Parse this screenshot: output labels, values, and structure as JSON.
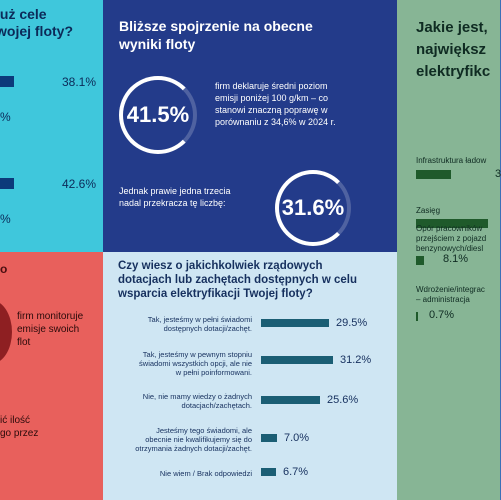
{
  "fleet_goals": {
    "question": "już cele\nwojej floty?",
    "items": [
      {
        "value": "38.1%"
      },
      {
        "value": "%"
      },
      {
        "value": "42.6%"
      },
      {
        "value": "%"
      }
    ]
  },
  "results": {
    "title": "Bliższe spojrzenie na obecne\nwyniki floty",
    "stat1": {
      "value": "41.5%",
      "text": "firm deklaruje średni poziom\nemisji poniżej 100 g/km – co\nstanowi znaczną poprawę w\nporównaniu z 34,6% w 2024 r."
    },
    "stat2": {
      "value": "31.6%",
      "text": "Jednak prawie jedna trzecia\nnadal przekracza tę liczbę:"
    }
  },
  "challenges": {
    "title": "Jakie jest,\nnajwiększ\nelektryfikc",
    "items": [
      {
        "label": "Infrastruktura ładow",
        "value": "3",
        "fraction": 0.42
      },
      {
        "label": "Zasięg",
        "value": "",
        "fraction": 0.86
      },
      {
        "label": "Opór pracowników\nprzejściem z pojazd\nbenzynowych/diesl",
        "value": "8.1%",
        "fraction": 0.1
      },
      {
        "label": "Wdrożenie/integrac\n– administracja",
        "value": "0.7%",
        "fraction": 0.01
      }
    ]
  },
  "monitoring": {
    "number": "o",
    "text": "firm monitoruje\nemisje swoich\nflot",
    "text2": "ić ilość\ngo przez"
  },
  "subsidies": {
    "title": "Czy wiesz o jakichkolwiek rządowych\ndotacjach lub zachętach dostępnych w celu\nwsparcia elektryfikacji Twojej floty?",
    "rows": [
      {
        "label": "Tak, jesteśmy w pełni świadomi\ndostępnych dotacji/zachęt.",
        "value": "29.5%",
        "pct": 29.5
      },
      {
        "label": "Tak, jesteśmy w pewnym stopniu\nświadomi wszystkich opcji, ale nie\nw pełni poinformowani.",
        "value": "31.2%",
        "pct": 31.2
      },
      {
        "label": "Nie, nie mamy wiedzy o żadnych\ndotacjach/zachętach.",
        "value": "25.6%",
        "pct": 25.6
      },
      {
        "label": "Jesteśmy tego świadomi, ale\nobecnie nie kwalifikujemy się do\notrzymania żadnych dotacji/zachęt.",
        "value": "7.0%",
        "pct": 7.0
      },
      {
        "label": "Nie wiem / Brak odpowiedzi",
        "value": "6.7%",
        "pct": 6.7
      }
    ]
  }
}
